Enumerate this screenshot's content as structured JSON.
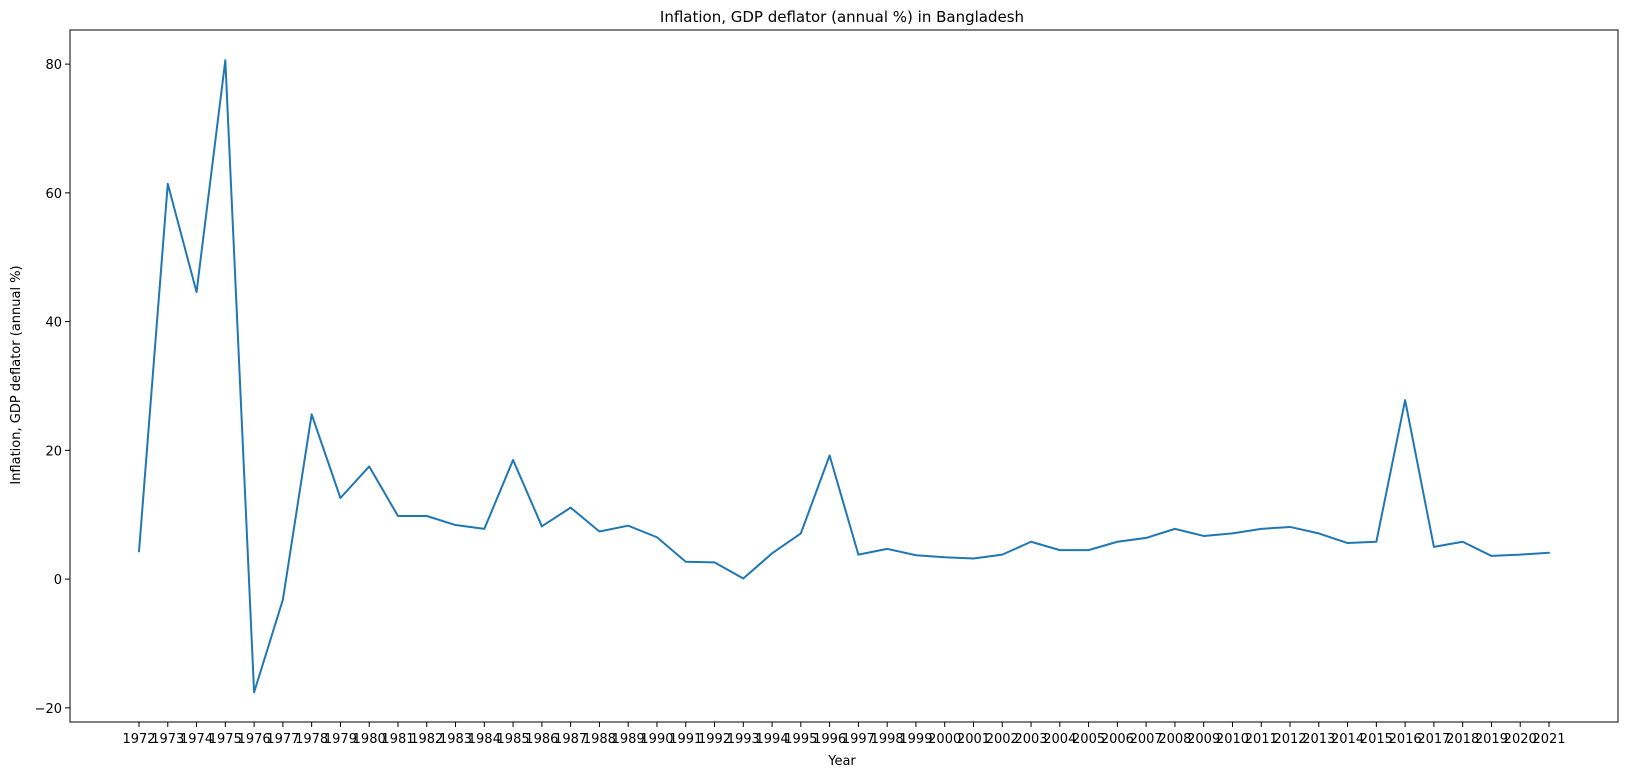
{
  "chart_data": {
    "type": "line",
    "title": "Inflation, GDP deflator (annual %) in Bangladesh",
    "xlabel": "Year",
    "ylabel": "Inflation, GDP deflator (annual %)",
    "categories": [
      "1972",
      "1973",
      "1974",
      "1975",
      "1976",
      "1977",
      "1978",
      "1979",
      "1980",
      "1981",
      "1982",
      "1983",
      "1984",
      "1985",
      "1986",
      "1987",
      "1988",
      "1989",
      "1990",
      "1991",
      "1992",
      "1993",
      "1994",
      "1995",
      "1996",
      "1997",
      "1998",
      "1999",
      "2000",
      "2001",
      "2002",
      "2003",
      "2004",
      "2005",
      "2006",
      "2007",
      "2008",
      "2009",
      "2010",
      "2011",
      "2012",
      "2013",
      "2014",
      "2015",
      "2016",
      "2017",
      "2018",
      "2019",
      "2020",
      "2021"
    ],
    "series": [
      {
        "values": [
          4.3,
          61.4,
          44.6,
          80.6,
          -17.6,
          -3.2,
          25.6,
          12.6,
          17.5,
          9.8,
          9.8,
          8.4,
          7.8,
          18.5,
          8.2,
          11.1,
          7.4,
          8.3,
          6.5,
          2.7,
          2.6,
          0.1,
          4.0,
          7.1,
          19.2,
          3.8,
          4.7,
          3.7,
          3.4,
          3.2,
          3.8,
          5.8,
          4.5,
          4.5,
          5.8,
          6.4,
          7.8,
          6.7,
          7.1,
          7.8,
          8.1,
          7.1,
          5.6,
          5.8,
          27.8,
          5.0,
          5.8,
          3.6,
          3.8,
          4.1
        ],
        "color": "#1f77b4"
      }
    ],
    "ylim": [
      -22.2,
      85.3
    ],
    "yticks": [
      -20,
      0,
      20,
      40,
      60,
      80
    ],
    "grid": false,
    "legend": "none"
  }
}
